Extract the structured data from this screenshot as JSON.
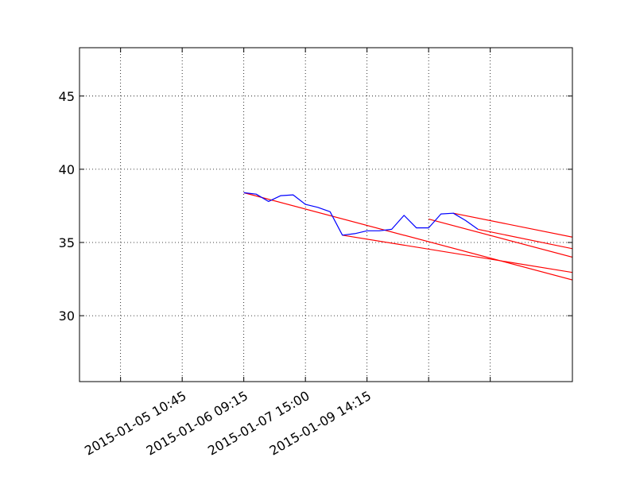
{
  "chart_data": {
    "type": "line",
    "title": "",
    "xlabel": "",
    "ylabel": "",
    "grid": true,
    "x_unit": "bar index",
    "xlim": [
      -2,
      22
    ],
    "ylim": [
      25.5,
      48.3
    ],
    "x_ticks": [
      {
        "x": 0,
        "label": ""
      },
      {
        "x": 3,
        "label": "2015-01-05 10:45"
      },
      {
        "x": 6,
        "label": "2015-01-06 09:15"
      },
      {
        "x": 9,
        "label": "2015-01-07 15:00"
      },
      {
        "x": 12,
        "label": "2015-01-09 14:15"
      },
      {
        "x": 15,
        "label": ""
      },
      {
        "x": 18,
        "label": ""
      }
    ],
    "y_ticks": [
      30,
      35,
      40,
      45
    ],
    "series": [
      {
        "color": "#0000ff",
        "x": [
          6,
          6.6,
          7.2,
          7.8,
          8.4,
          9,
          9.6,
          10.2,
          10.8,
          11.4,
          12,
          12.6,
          13.2,
          13.8,
          14.4,
          15,
          15.6,
          16.2,
          16.8,
          17.4,
          18,
          18.6
        ],
        "y": [
          38.4,
          38.3,
          37.8,
          38.2,
          38.25,
          37.6,
          37.4,
          37.1,
          35.5,
          35.6,
          35.8,
          35.8,
          35.9,
          36.85,
          36.0,
          36.0,
          36.95,
          37.0,
          36.5,
          35.9,
          null,
          null
        ]
      }
    ],
    "trend_lines": [
      {
        "color": "#ff0000",
        "x": [
          6,
          24
        ],
        "y": [
          38.4,
          31.7
        ]
      },
      {
        "color": "#ff0000",
        "x": [
          10.8,
          24
        ],
        "y": [
          35.5,
          32.5
        ]
      },
      {
        "color": "#ff0000",
        "x": [
          15,
          24
        ],
        "y": [
          36.6,
          33.25
        ]
      },
      {
        "color": "#ff0000",
        "x": [
          17.4,
          24
        ],
        "y": [
          35.9,
          34.0
        ]
      },
      {
        "color": "#ff0000",
        "x": [
          16.2,
          24
        ],
        "y": [
          37.0,
          34.8
        ]
      }
    ]
  }
}
